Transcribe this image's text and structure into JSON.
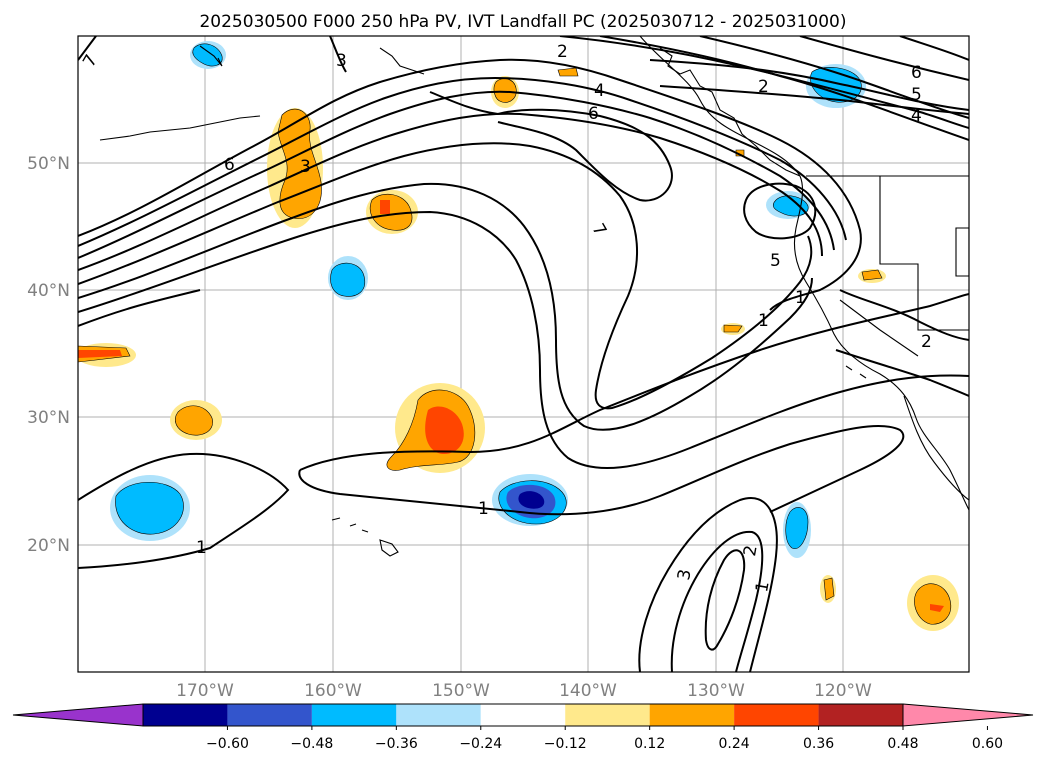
{
  "title": "2025030500 F000 250 hPa PV, IVT Landfall PC (2025030712 - 2025031000)",
  "axes": {
    "lon_ticks": [
      "170°W",
      "160°W",
      "150°W",
      "140°W",
      "130°W",
      "120°W"
    ],
    "lat_ticks": [
      "20°N",
      "30°N",
      "40°N",
      "50°N"
    ],
    "tick_color": "#808080",
    "grid": true
  },
  "colorbar": {
    "tick_labels": [
      "−0.60",
      "−0.48",
      "−0.36",
      "−0.24",
      "−0.12",
      "0.12",
      "0.24",
      "0.36",
      "0.48",
      "0.60"
    ],
    "colors": [
      "#9933cc",
      "#000090",
      "#3355cc",
      "#00bbff",
      "#aee2fb",
      "#ffffff",
      "#ffe98c",
      "#ffa500",
      "#ff4500",
      "#b22222",
      "#ff88aa"
    ],
    "extend": "both"
  },
  "contour_labels": [
    {
      "text": "7"
    },
    {
      "text": "3"
    },
    {
      "text": "2"
    },
    {
      "text": "4"
    },
    {
      "text": "6"
    },
    {
      "text": "6"
    },
    {
      "text": "3"
    },
    {
      "text": "2"
    },
    {
      "text": "6"
    },
    {
      "text": "5"
    },
    {
      "text": "4"
    },
    {
      "text": "7"
    },
    {
      "text": "5"
    },
    {
      "text": "1"
    },
    {
      "text": "1"
    },
    {
      "text": "2"
    },
    {
      "text": "1"
    },
    {
      "text": "1"
    },
    {
      "text": "3"
    },
    {
      "text": "2"
    },
    {
      "text": "1"
    }
  ]
}
